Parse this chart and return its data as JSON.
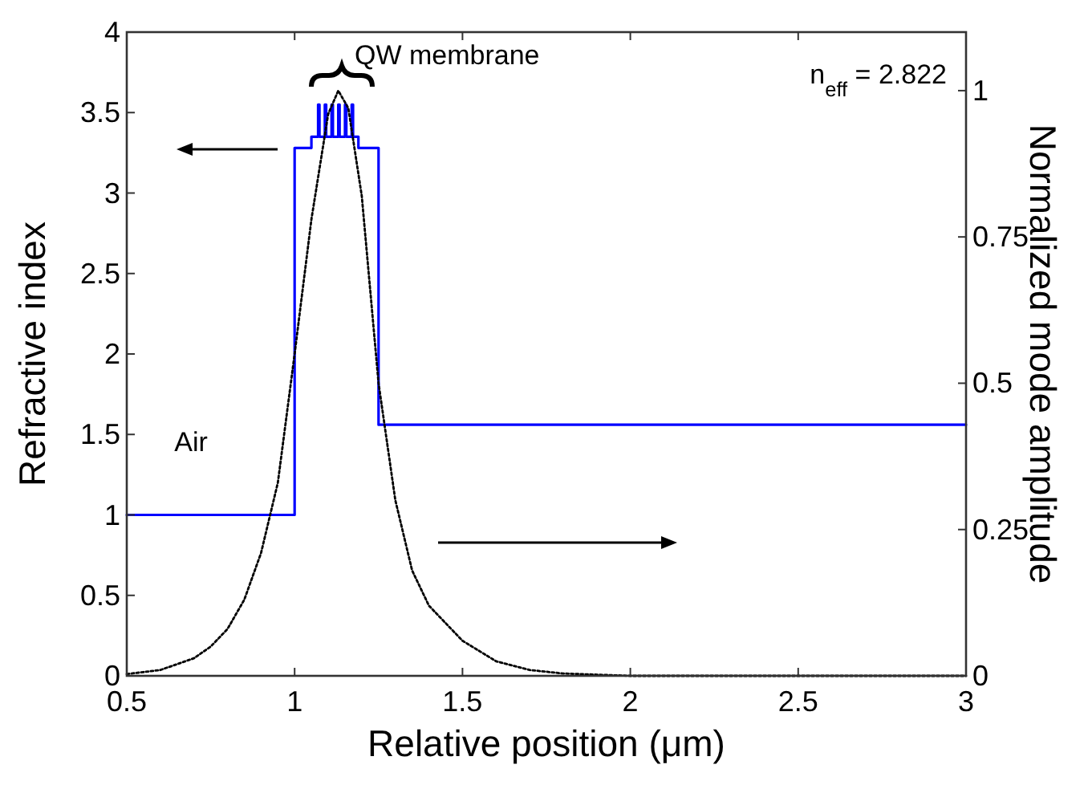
{
  "chart_data": {
    "type": "step",
    "xlabel": "Relative position (μm)",
    "ylabel": "Refractive index",
    "y2label": "Normalized mode amplitude",
    "xlim": [
      0.5,
      3
    ],
    "xticks": [
      0.5,
      1,
      1.5,
      2,
      2.5,
      3
    ],
    "ylim": [
      0,
      4
    ],
    "yticks": [
      0,
      0.5,
      1,
      1.5,
      2,
      2.5,
      3,
      3.5,
      4
    ],
    "y2lim": [
      0,
      1.1
    ],
    "y2ticks": [
      0,
      0.25,
      0.5,
      0.75,
      1
    ],
    "grid": false,
    "marker": "none",
    "series": [
      {
        "color": "#0000ff",
        "line_style": "solid",
        "x": [
          0.5,
          1.0,
          1.05,
          1.07,
          1.074,
          1.09,
          1.094,
          1.11,
          1.114,
          1.13,
          1.134,
          1.15,
          1.154,
          1.17,
          1.174,
          1.19,
          1.25,
          3.0
        ],
        "values": [
          1,
          3.28,
          3.35,
          3.55,
          3.35,
          3.55,
          3.35,
          3.55,
          3.35,
          3.55,
          3.35,
          3.55,
          3.35,
          3.55,
          3.35,
          3.28,
          1.56,
          1.56
        ]
      },
      {
        "type": "line",
        "axis": "y2",
        "color": "#000000",
        "line_style": "dotted",
        "x": [
          0.5,
          0.6,
          0.7,
          0.75,
          0.8,
          0.85,
          0.9,
          0.95,
          1.0,
          1.05,
          1.1,
          1.13,
          1.16,
          1.2,
          1.25,
          1.3,
          1.35,
          1.4,
          1.5,
          1.6,
          1.7,
          1.8,
          2.0,
          3.0
        ],
        "values": [
          0.003,
          0.01,
          0.03,
          0.05,
          0.08,
          0.13,
          0.21,
          0.33,
          0.55,
          0.78,
          0.96,
          1.0,
          0.97,
          0.82,
          0.5,
          0.3,
          0.18,
          0.12,
          0.06,
          0.025,
          0.01,
          0.004,
          0,
          0
        ]
      }
    ],
    "annotations": [
      "Air",
      "QW membrane",
      "n$_{eff}$ = 2.822"
    ]
  }
}
